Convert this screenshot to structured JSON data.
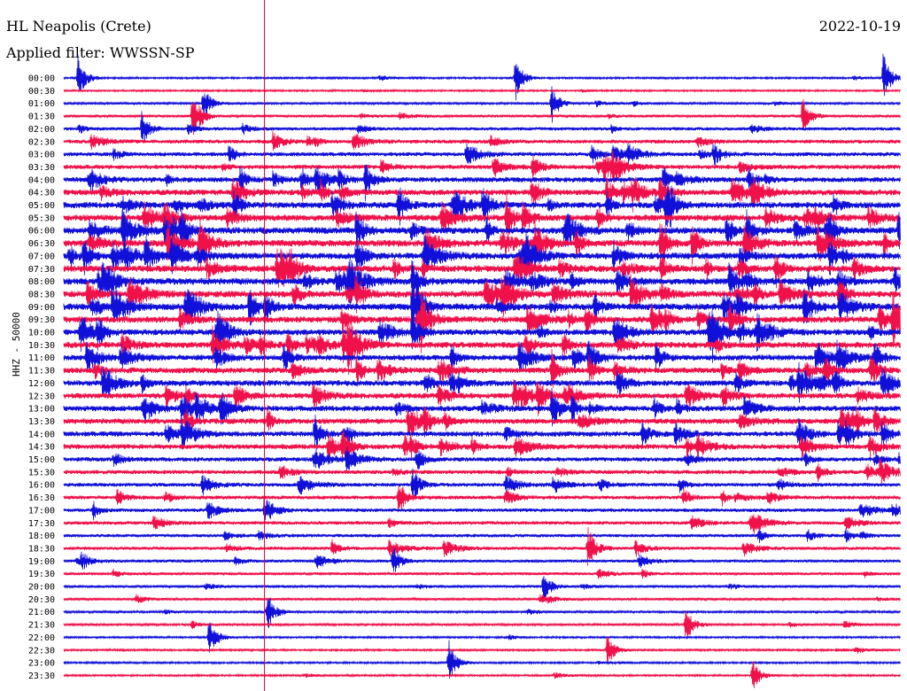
{
  "header": {
    "station": "HL Neapolis (Crete)",
    "date": "2022-10-19",
    "filter": "Applied filter: WWSSN-SP",
    "channel": "HHZ - 50000"
  },
  "colors": {
    "trace_a": "#1010d8",
    "trace_b": "#f0104a",
    "marker_line": "#e0003a",
    "background": "#ffffff"
  },
  "chart_data": {
    "type": "line",
    "title": "HL Neapolis (Crete)",
    "subtitle": "Applied filter: WWSSN-SP",
    "ylabel": "HHZ - 50000",
    "time_labels": [
      "00:00",
      "00:30",
      "01:00",
      "01:30",
      "02:00",
      "02:30",
      "03:00",
      "03:30",
      "04:00",
      "04:30",
      "05:00",
      "05:30",
      "06:00",
      "06:30",
      "07:00",
      "07:30",
      "08:00",
      "08:30",
      "09:00",
      "09:30",
      "10:00",
      "10:30",
      "11:00",
      "11:30",
      "12:00",
      "12:30",
      "13:00",
      "13:30",
      "14:00",
      "14:30",
      "15:00",
      "15:30",
      "16:00",
      "16:30",
      "17:00",
      "17:30",
      "18:00",
      "18:30",
      "19:00",
      "19:30",
      "20:00",
      "20:30",
      "21:00",
      "21:30",
      "22:00",
      "22:30",
      "23:00",
      "23:30"
    ],
    "series": [
      {
        "color": "#1010d8",
        "rows": "even"
      },
      {
        "color": "#f0104a",
        "rows": "odd"
      }
    ],
    "x_range_minutes": [
      0,
      30
    ],
    "marker_minute": 7.2,
    "row_activity": [
      0.15,
      0.12,
      0.2,
      0.3,
      0.4,
      0.5,
      0.55,
      0.6,
      0.75,
      0.85,
      0.9,
      0.95,
      1.0,
      1.0,
      1.0,
      1.0,
      1.0,
      1.0,
      1.0,
      0.95,
      0.9,
      0.9,
      0.85,
      0.85,
      0.85,
      0.8,
      0.8,
      0.8,
      0.75,
      0.7,
      0.6,
      0.55,
      0.5,
      0.5,
      0.45,
      0.45,
      0.4,
      0.4,
      0.35,
      0.3,
      0.3,
      0.25,
      0.2,
      0.2,
      0.15,
      0.15,
      0.15,
      0.15
    ],
    "events": [
      {
        "row": 0,
        "minute": 0.5,
        "amp": 1.6
      },
      {
        "row": 0,
        "minute": 16.2,
        "amp": 1.5
      },
      {
        "row": 0,
        "minute": 29.4,
        "amp": 1.7
      },
      {
        "row": 2,
        "minute": 5.0,
        "amp": 1.2
      },
      {
        "row": 2,
        "minute": 17.5,
        "amp": 1.3
      },
      {
        "row": 3,
        "minute": 4.6,
        "amp": 1.4
      },
      {
        "row": 3,
        "minute": 26.5,
        "amp": 1.3
      },
      {
        "row": 4,
        "minute": 2.8,
        "amp": 1.2
      },
      {
        "row": 8,
        "minute": 10.8,
        "amp": 1.3
      },
      {
        "row": 10,
        "minute": 12.0,
        "amp": 1.4
      },
      {
        "row": 12,
        "minute": 10.5,
        "amp": 1.3
      },
      {
        "row": 12,
        "minute": 24.5,
        "amp": 1.2
      },
      {
        "row": 14,
        "minute": 10.5,
        "amp": 1.4
      },
      {
        "row": 16,
        "minute": 12.5,
        "amp": 1.4
      },
      {
        "row": 18,
        "minute": 12.5,
        "amp": 1.8
      },
      {
        "row": 19,
        "minute": 12.8,
        "amp": 1.8
      },
      {
        "row": 20,
        "minute": 12.5,
        "amp": 1.6
      },
      {
        "row": 23,
        "minute": 17.5,
        "amp": 1.3
      },
      {
        "row": 25,
        "minute": 17.0,
        "amp": 1.3
      },
      {
        "row": 26,
        "minute": 17.5,
        "amp": 1.4
      },
      {
        "row": 28,
        "minute": 9.0,
        "amp": 1.3
      },
      {
        "row": 29,
        "minute": 10.0,
        "amp": 1.3
      },
      {
        "row": 32,
        "minute": 12.5,
        "amp": 1.3
      },
      {
        "row": 33,
        "minute": 12.0,
        "amp": 1.3
      },
      {
        "row": 37,
        "minute": 18.8,
        "amp": 1.7
      },
      {
        "row": 38,
        "minute": 11.8,
        "amp": 1.1
      },
      {
        "row": 40,
        "minute": 17.2,
        "amp": 1.1
      },
      {
        "row": 42,
        "minute": 7.3,
        "amp": 1.2
      },
      {
        "row": 43,
        "minute": 22.3,
        "amp": 1.4
      },
      {
        "row": 44,
        "minute": 5.2,
        "amp": 1.2
      },
      {
        "row": 45,
        "minute": 19.5,
        "amp": 1.1
      },
      {
        "row": 46,
        "minute": 13.8,
        "amp": 1.6
      },
      {
        "row": 47,
        "minute": 24.7,
        "amp": 1.2
      }
    ]
  }
}
